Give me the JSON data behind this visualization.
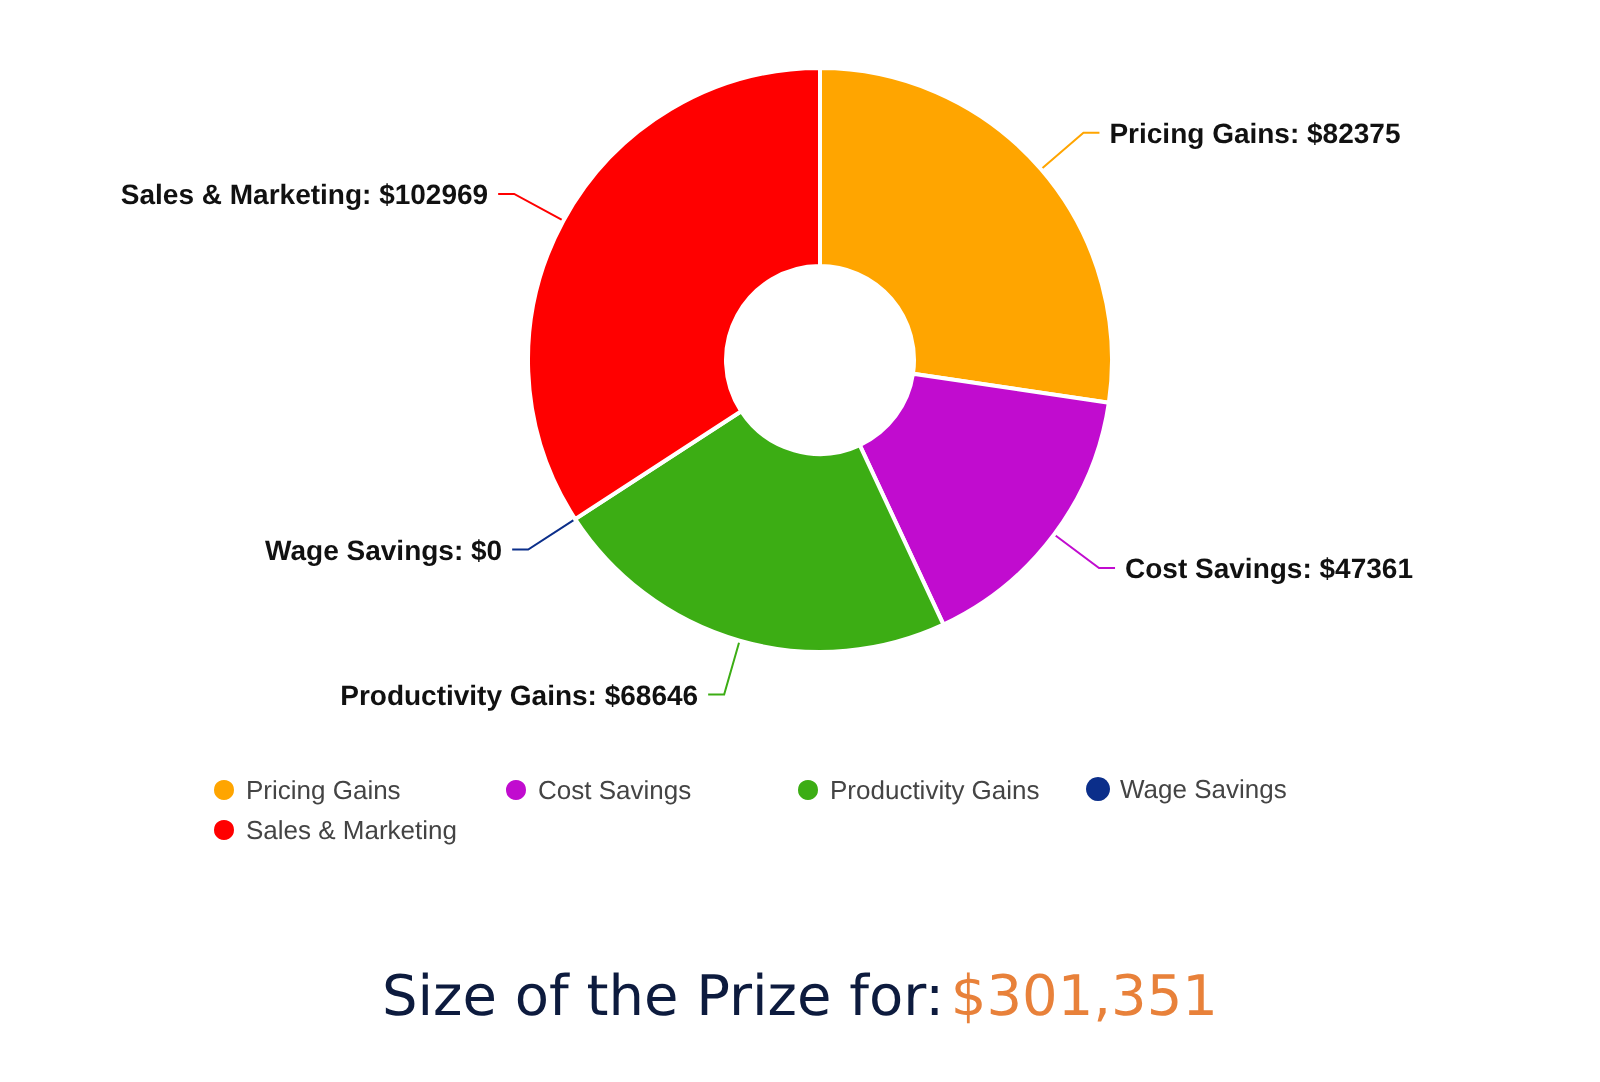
{
  "chart_data": {
    "type": "donut",
    "categories": [
      "Pricing Gains",
      "Cost Savings",
      "Productivity Gains",
      "Wage Savings",
      "Sales & Marketing"
    ],
    "values": [
      82375,
      47361,
      68646,
      0,
      102969
    ],
    "colors": [
      "#ffa500",
      "#c10ccf",
      "#3cad14",
      "#0b2e8a",
      "#ff0000"
    ],
    "value_labels": [
      "Pricing Gains: $82375",
      "Cost Savings: $47361",
      "Productivity Gains: $68646",
      "Wage Savings: $0",
      "Sales & Marketing: $102969"
    ],
    "legend": "bottom",
    "annotations": [
      "Size of the Prize for:",
      "$301,351"
    ]
  }
}
